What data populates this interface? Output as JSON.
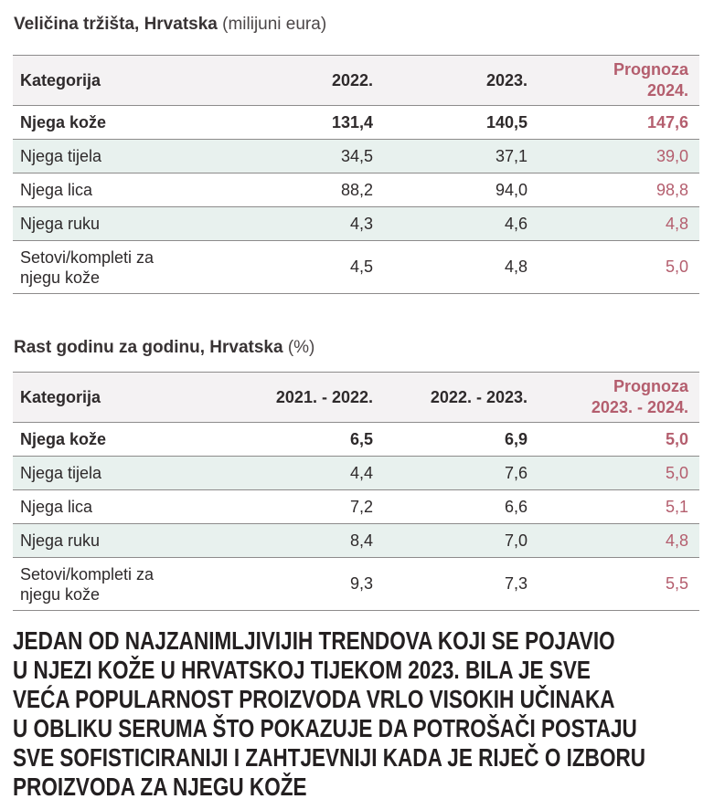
{
  "colors": {
    "accent_pink": "#b45e6e",
    "row_tint_teal": "#e8f1ee",
    "header_bg": "#f4f2f3",
    "rule_gray": "#8d8b8b",
    "text_dark": "#2e2a2b"
  },
  "chart_data": [
    {
      "type": "table",
      "title": "Veličina tržišta, Hrvatska",
      "unit": "(milijuni eura)",
      "col_category": "Kategorija",
      "col_a": "2022.",
      "col_b": "2023.",
      "col_forecast_line1": "Prognoza",
      "col_forecast_line2": "2024.",
      "rows": [
        {
          "category": "Njega kože",
          "a": "131,4",
          "b": "140,5",
          "forecast": "147,6"
        },
        {
          "category": "Njega tijela",
          "a": "34,5",
          "b": "37,1",
          "forecast": "39,0"
        },
        {
          "category": "Njega lica",
          "a": "88,2",
          "b": "94,0",
          "forecast": "98,8"
        },
        {
          "category": "Njega ruku",
          "a": "4,3",
          "b": "4,6",
          "forecast": "4,8"
        },
        {
          "category": "Setovi/kompleti za njegu kože",
          "a": "4,5",
          "b": "4,8",
          "forecast": "5,0"
        }
      ]
    },
    {
      "type": "table",
      "title": "Rast godinu za godinu, Hrvatska",
      "unit": "(%)",
      "col_category": "Kategorija",
      "col_a": "2021. - 2022.",
      "col_b": "2022. - 2023.",
      "col_forecast_line1": "Prognoza",
      "col_forecast_line2": "2023. - 2024.",
      "rows": [
        {
          "category": "Njega kože",
          "a": "6,5",
          "b": "6,9",
          "forecast": "5,0"
        },
        {
          "category": "Njega tijela",
          "a": "4,4",
          "b": "7,6",
          "forecast": "5,0"
        },
        {
          "category": "Njega lica",
          "a": "7,2",
          "b": "6,6",
          "forecast": "5,1"
        },
        {
          "category": "Njega ruku",
          "a": "8,4",
          "b": "7,0",
          "forecast": "4,8"
        },
        {
          "category": "Setovi/kompleti za njegu kože",
          "a": "9,3",
          "b": "7,3",
          "forecast": "5,5"
        }
      ]
    }
  ],
  "footer": {
    "lines": [
      "JEDAN OD NAJZANIMLJIVIJIH TRENDOVA KOJI SE POJAVIO",
      "U NJEZI KOŽE U HRVATSKOJ TIJEKOM 2023. BILA JE SVE",
      "VEĆA POPULARNOST PROIZVODA VRLO VISOKIH UČINAKA",
      "U OBLIKU SERUMA ŠTO POKAZUJE DA POTROŠAČI POSTAJU",
      "SVE SOFISTICIRANIJI I ZAHTJEVNIJI KADA JE RIJEČ O IZBORU",
      "PROIZVODA ZA NJEGU KOŽE"
    ]
  }
}
